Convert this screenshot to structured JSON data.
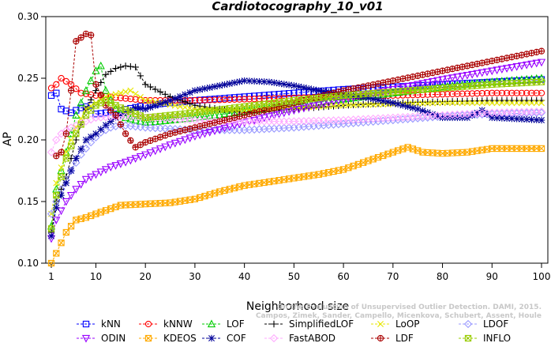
{
  "chart_data": {
    "type": "line",
    "title": "Cardiotocography_10_v01",
    "xlabel": "Neighborhood size",
    "ylabel": "AP",
    "xlim": [
      1,
      100
    ],
    "ylim": [
      0.1,
      0.3
    ],
    "xticks": [
      1,
      10,
      20,
      30,
      40,
      50,
      60,
      70,
      80,
      90,
      100
    ],
    "yticks": [
      0.1,
      0.15,
      0.2,
      0.25,
      0.3
    ],
    "ytick_labels": [
      "0.10",
      "0.15",
      "0.20",
      "0.25",
      "0.30"
    ],
    "grid": false,
    "legend_position": "bottom",
    "watermark": [
      "Campos, Zimek, Sander, Campello, Micenkova, Schubert, Assent, Houle",
      "On the Evaluation of Unsupervised Outlier Detection. DAMI, 2015."
    ],
    "series": [
      {
        "name": "kNN",
        "color": "#0000ff",
        "marker": "square",
        "points": [
          [
            1,
            0.236
          ],
          [
            2,
            0.238
          ],
          [
            3,
            0.225
          ],
          [
            5,
            0.222
          ],
          [
            7,
            0.226
          ],
          [
            9,
            0.228
          ],
          [
            10,
            0.221
          ],
          [
            12,
            0.222
          ],
          [
            15,
            0.224
          ],
          [
            20,
            0.228
          ],
          [
            30,
            0.232
          ],
          [
            40,
            0.235
          ],
          [
            50,
            0.238
          ],
          [
            60,
            0.241
          ],
          [
            70,
            0.243
          ],
          [
            80,
            0.245
          ],
          [
            90,
            0.247
          ],
          [
            100,
            0.249
          ]
        ]
      },
      {
        "name": "kNNW",
        "color": "#ff0000",
        "marker": "circle",
        "points": [
          [
            1,
            0.242
          ],
          [
            2,
            0.245
          ],
          [
            3,
            0.25
          ],
          [
            5,
            0.245
          ],
          [
            7,
            0.238
          ],
          [
            10,
            0.236
          ],
          [
            15,
            0.234
          ],
          [
            20,
            0.232
          ],
          [
            30,
            0.232
          ],
          [
            40,
            0.233
          ],
          [
            50,
            0.234
          ],
          [
            60,
            0.235
          ],
          [
            70,
            0.236
          ],
          [
            80,
            0.237
          ],
          [
            90,
            0.238
          ],
          [
            100,
            0.238
          ]
        ]
      },
      {
        "name": "LOF",
        "color": "#00cc00",
        "marker": "triangle",
        "points": [
          [
            1,
            0.13
          ],
          [
            2,
            0.16
          ],
          [
            4,
            0.19
          ],
          [
            6,
            0.22
          ],
          [
            8,
            0.24
          ],
          [
            10,
            0.256
          ],
          [
            11,
            0.26
          ],
          [
            12,
            0.24
          ],
          [
            14,
            0.225
          ],
          [
            16,
            0.218
          ],
          [
            20,
            0.214
          ],
          [
            30,
            0.218
          ],
          [
            40,
            0.223
          ],
          [
            50,
            0.228
          ],
          [
            60,
            0.233
          ],
          [
            70,
            0.238
          ],
          [
            80,
            0.243
          ],
          [
            90,
            0.247
          ],
          [
            100,
            0.25
          ]
        ]
      },
      {
        "name": "SimplifiedLOF",
        "color": "#000000",
        "marker": "plus",
        "points": [
          [
            1,
            0.125
          ],
          [
            2,
            0.15
          ],
          [
            4,
            0.17
          ],
          [
            6,
            0.2
          ],
          [
            8,
            0.225
          ],
          [
            10,
            0.24
          ],
          [
            12,
            0.253
          ],
          [
            14,
            0.258
          ],
          [
            16,
            0.26
          ],
          [
            18,
            0.259
          ],
          [
            20,
            0.245
          ],
          [
            25,
            0.235
          ],
          [
            30,
            0.228
          ],
          [
            40,
            0.222
          ],
          [
            50,
            0.225
          ],
          [
            60,
            0.228
          ],
          [
            70,
            0.23
          ],
          [
            80,
            0.231
          ],
          [
            90,
            0.232
          ],
          [
            100,
            0.232
          ]
        ]
      },
      {
        "name": "LoOP",
        "color": "#e6e600",
        "marker": "x",
        "points": [
          [
            1,
            0.14
          ],
          [
            2,
            0.165
          ],
          [
            4,
            0.19
          ],
          [
            6,
            0.21
          ],
          [
            8,
            0.225
          ],
          [
            10,
            0.23
          ],
          [
            12,
            0.235
          ],
          [
            15,
            0.238
          ],
          [
            17,
            0.24
          ],
          [
            20,
            0.232
          ],
          [
            30,
            0.225
          ],
          [
            40,
            0.224
          ],
          [
            50,
            0.226
          ],
          [
            60,
            0.228
          ],
          [
            70,
            0.229
          ],
          [
            80,
            0.23
          ],
          [
            90,
            0.23
          ],
          [
            100,
            0.23
          ]
        ]
      },
      {
        "name": "LDOF",
        "color": "#9999ff",
        "marker": "diamond",
        "points": [
          [
            1,
            0.14
          ],
          [
            3,
            0.16
          ],
          [
            5,
            0.175
          ],
          [
            7,
            0.188
          ],
          [
            9,
            0.198
          ],
          [
            11,
            0.206
          ],
          [
            13,
            0.21
          ],
          [
            15,
            0.212
          ],
          [
            20,
            0.21
          ],
          [
            30,
            0.208
          ],
          [
            40,
            0.208
          ],
          [
            50,
            0.21
          ],
          [
            60,
            0.213
          ],
          [
            70,
            0.216
          ],
          [
            80,
            0.219
          ],
          [
            90,
            0.221
          ],
          [
            100,
            0.222
          ]
        ]
      },
      {
        "name": "ODIN",
        "color": "#9900ff",
        "marker": "triangle-down",
        "points": [
          [
            1,
            0.12
          ],
          [
            2,
            0.135
          ],
          [
            4,
            0.15
          ],
          [
            6,
            0.16
          ],
          [
            8,
            0.168
          ],
          [
            10,
            0.172
          ],
          [
            13,
            0.178
          ],
          [
            16,
            0.182
          ],
          [
            20,
            0.188
          ],
          [
            25,
            0.196
          ],
          [
            30,
            0.203
          ],
          [
            40,
            0.214
          ],
          [
            50,
            0.224
          ],
          [
            60,
            0.233
          ],
          [
            70,
            0.241
          ],
          [
            80,
            0.249
          ],
          [
            90,
            0.256
          ],
          [
            100,
            0.263
          ]
        ]
      },
      {
        "name": "KDEOS",
        "color": "#ffaa00",
        "marker": "square-x",
        "points": [
          [
            1,
            0.1
          ],
          [
            2,
            0.108
          ],
          [
            4,
            0.125
          ],
          [
            6,
            0.135
          ],
          [
            8,
            0.137
          ],
          [
            10,
            0.14
          ],
          [
            15,
            0.147
          ],
          [
            20,
            0.148
          ],
          [
            25,
            0.149
          ],
          [
            30,
            0.152
          ],
          [
            35,
            0.158
          ],
          [
            40,
            0.163
          ],
          [
            45,
            0.166
          ],
          [
            50,
            0.169
          ],
          [
            55,
            0.172
          ],
          [
            60,
            0.176
          ],
          [
            65,
            0.183
          ],
          [
            70,
            0.19
          ],
          [
            73,
            0.194
          ],
          [
            76,
            0.19
          ],
          [
            80,
            0.189
          ],
          [
            85,
            0.19
          ],
          [
            90,
            0.193
          ],
          [
            95,
            0.193
          ],
          [
            100,
            0.193
          ]
        ]
      },
      {
        "name": "COF",
        "color": "#000099",
        "marker": "asterisk",
        "points": [
          [
            1,
            0.122
          ],
          [
            2,
            0.145
          ],
          [
            4,
            0.165
          ],
          [
            6,
            0.185
          ],
          [
            8,
            0.2
          ],
          [
            10,
            0.205
          ],
          [
            12,
            0.212
          ],
          [
            14,
            0.218
          ],
          [
            16,
            0.222
          ],
          [
            18,
            0.226
          ],
          [
            20,
            0.225
          ],
          [
            25,
            0.232
          ],
          [
            30,
            0.24
          ],
          [
            35,
            0.244
          ],
          [
            40,
            0.248
          ],
          [
            45,
            0.247
          ],
          [
            50,
            0.244
          ],
          [
            55,
            0.24
          ],
          [
            60,
            0.237
          ],
          [
            65,
            0.234
          ],
          [
            70,
            0.23
          ],
          [
            75,
            0.225
          ],
          [
            80,
            0.218
          ],
          [
            85,
            0.218
          ],
          [
            88,
            0.224
          ],
          [
            90,
            0.218
          ],
          [
            95,
            0.217
          ],
          [
            100,
            0.216
          ]
        ]
      },
      {
        "name": "FastABOD",
        "color": "#ffaaff",
        "marker": "diamond",
        "points": [
          [
            1,
            0.19
          ],
          [
            2,
            0.2
          ],
          [
            3,
            0.205
          ],
          [
            5,
            0.21
          ],
          [
            8,
            0.215
          ],
          [
            10,
            0.218
          ],
          [
            15,
            0.219
          ],
          [
            20,
            0.218
          ],
          [
            30,
            0.216
          ],
          [
            40,
            0.215
          ],
          [
            50,
            0.215
          ],
          [
            60,
            0.216
          ],
          [
            70,
            0.218
          ],
          [
            80,
            0.22
          ],
          [
            90,
            0.222
          ],
          [
            100,
            0.223
          ]
        ]
      },
      {
        "name": "LDF",
        "color": "#aa0000",
        "marker": "circle-plus",
        "points": [
          [
            2,
            0.187
          ],
          [
            3,
            0.19
          ],
          [
            4,
            0.205
          ],
          [
            5,
            0.24
          ],
          [
            6,
            0.28
          ],
          [
            7,
            0.283
          ],
          [
            8,
            0.286
          ],
          [
            9,
            0.285
          ],
          [
            10,
            0.245
          ],
          [
            12,
            0.228
          ],
          [
            14,
            0.22
          ],
          [
            16,
            0.205
          ],
          [
            18,
            0.194
          ],
          [
            20,
            0.198
          ],
          [
            25,
            0.205
          ],
          [
            30,
            0.21
          ],
          [
            40,
            0.22
          ],
          [
            50,
            0.23
          ],
          [
            60,
            0.24
          ],
          [
            70,
            0.248
          ],
          [
            80,
            0.256
          ],
          [
            90,
            0.264
          ],
          [
            100,
            0.272
          ]
        ]
      },
      {
        "name": "INFLO",
        "color": "#99cc00",
        "marker": "square-x",
        "points": [
          [
            1,
            0.128
          ],
          [
            2,
            0.155
          ],
          [
            4,
            0.185
          ],
          [
            6,
            0.205
          ],
          [
            8,
            0.22
          ],
          [
            10,
            0.228
          ],
          [
            12,
            0.232
          ],
          [
            15,
            0.226
          ],
          [
            20,
            0.218
          ],
          [
            30,
            0.222
          ],
          [
            40,
            0.227
          ],
          [
            50,
            0.232
          ],
          [
            60,
            0.236
          ],
          [
            70,
            0.239
          ],
          [
            80,
            0.242
          ],
          [
            90,
            0.245
          ],
          [
            100,
            0.247
          ]
        ]
      }
    ]
  }
}
